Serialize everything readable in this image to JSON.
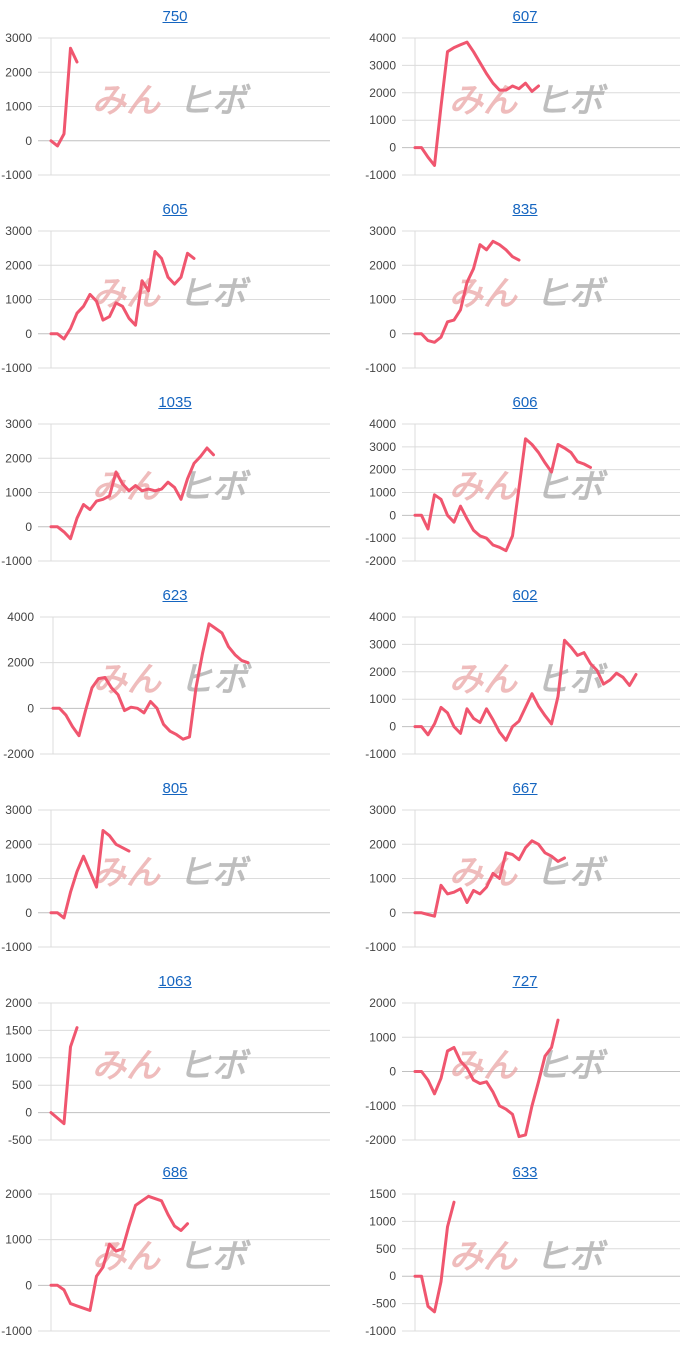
{
  "watermark": {
    "part1": "みん",
    "part2": "ヒボ"
  },
  "colors": {
    "line": "#f0566f",
    "grid": "#dcdcdc",
    "axis": "#c0c0c0",
    "title": "#1565c0"
  },
  "chart_data": [
    {
      "type": "line",
      "title": "750",
      "ylim": [
        -1000,
        3000
      ],
      "yticks": [
        -1000,
        0,
        1000,
        2000,
        3000
      ],
      "values": [
        0,
        -150,
        200,
        2700,
        2300
      ]
    },
    {
      "type": "line",
      "title": "607",
      "ylim": [
        -1000,
        4000
      ],
      "yticks": [
        -1000,
        0,
        1000,
        2000,
        3000,
        4000
      ],
      "values": [
        0,
        0,
        -350,
        -650,
        1500,
        3500,
        3650,
        3750,
        3850,
        3500,
        3100,
        2700,
        2350,
        2100,
        2100,
        2250,
        2150,
        2350,
        2050,
        2250
      ]
    },
    {
      "type": "line",
      "title": "605",
      "ylim": [
        -1000,
        3000
      ],
      "yticks": [
        -1000,
        0,
        1000,
        2000,
        3000
      ],
      "values": [
        0,
        0,
        -150,
        150,
        600,
        800,
        1150,
        950,
        400,
        500,
        900,
        800,
        450,
        250,
        1550,
        1250,
        2400,
        2200,
        1650,
        1450,
        1650,
        2350,
        2200
      ]
    },
    {
      "type": "line",
      "title": "835",
      "ylim": [
        -1000,
        3000
      ],
      "yticks": [
        -1000,
        0,
        1000,
        2000,
        3000
      ],
      "values": [
        0,
        0,
        -200,
        -250,
        -100,
        350,
        400,
        700,
        1500,
        1900,
        2600,
        2450,
        2700,
        2600,
        2450,
        2250,
        2150
      ]
    },
    {
      "type": "line",
      "title": "1035",
      "ylim": [
        -1000,
        3000
      ],
      "yticks": [
        -1000,
        0,
        1000,
        2000,
        3000
      ],
      "values": [
        0,
        0,
        -150,
        -350,
        250,
        650,
        500,
        750,
        800,
        900,
        1600,
        1250,
        1050,
        1200,
        1050,
        1100,
        1050,
        1100,
        1300,
        1150,
        800,
        1400,
        1850,
        2050,
        2300,
        2100
      ]
    },
    {
      "type": "line",
      "title": "606",
      "ylim": [
        -2000,
        4000
      ],
      "yticks": [
        -2000,
        -1000,
        0,
        1000,
        2000,
        3000,
        4000
      ],
      "values": [
        0,
        0,
        -600,
        900,
        700,
        0,
        -300,
        400,
        -150,
        -650,
        -900,
        -1000,
        -1300,
        -1400,
        -1550,
        -900,
        1200,
        3350,
        3100,
        2750,
        2300,
        1900,
        3100,
        2950,
        2750,
        2350,
        2250,
        2100
      ]
    },
    {
      "type": "line",
      "title": "623",
      "ylim": [
        -2000,
        4000
      ],
      "yticks": [
        -2000,
        0,
        2000,
        4000
      ],
      "values": [
        0,
        0,
        -300,
        -800,
        -1200,
        -100,
        900,
        1300,
        1350,
        900,
        600,
        -100,
        50,
        0,
        -200,
        300,
        0,
        -700,
        -1000,
        -1150,
        -1350,
        -1250,
        900,
        2400,
        3700,
        3500,
        3300,
        2700,
        2350,
        2100,
        2000
      ]
    },
    {
      "type": "line",
      "title": "602",
      "ylim": [
        -1000,
        4000
      ],
      "yticks": [
        -1000,
        0,
        1000,
        2000,
        3000,
        4000
      ],
      "values": [
        0,
        0,
        -300,
        100,
        700,
        500,
        0,
        -250,
        650,
        300,
        150,
        650,
        250,
        -200,
        -500,
        0,
        200,
        700,
        1200,
        750,
        400,
        100,
        1100,
        3150,
        2900,
        2600,
        2700,
        2300,
        2050,
        1550,
        1700,
        1950,
        1800,
        1500,
        1900
      ]
    },
    {
      "type": "line",
      "title": "805",
      "ylim": [
        -1000,
        3000
      ],
      "yticks": [
        -1000,
        0,
        1000,
        2000,
        3000
      ],
      "values": [
        0,
        0,
        -150,
        600,
        1200,
        1650,
        1200,
        750,
        2400,
        2250,
        2000,
        1900,
        1800
      ]
    },
    {
      "type": "line",
      "title": "667",
      "ylim": [
        -1000,
        3000
      ],
      "yticks": [
        -1000,
        0,
        1000,
        2000,
        3000
      ],
      "values": [
        0,
        0,
        -50,
        -100,
        800,
        550,
        600,
        700,
        300,
        650,
        550,
        750,
        1150,
        1000,
        1750,
        1700,
        1550,
        1900,
        2100,
        2000,
        1750,
        1650,
        1500,
        1600
      ]
    },
    {
      "type": "line",
      "title": "1063",
      "ylim": [
        -500,
        2000
      ],
      "yticks": [
        -500,
        0,
        500,
        1000,
        1500,
        2000
      ],
      "values": [
        0,
        -100,
        -200,
        1200,
        1550
      ]
    },
    {
      "type": "line",
      "title": "727",
      "ylim": [
        -2000,
        2000
      ],
      "yticks": [
        -2000,
        -1000,
        0,
        1000,
        2000
      ],
      "values": [
        0,
        0,
        -250,
        -650,
        -200,
        600,
        700,
        300,
        100,
        -250,
        -350,
        -300,
        -600,
        -1000,
        -1100,
        -1250,
        -1900,
        -1850,
        -1000,
        -300,
        450,
        700,
        1500
      ]
    },
    {
      "type": "line",
      "title": "686",
      "ylim": [
        -1000,
        2000
      ],
      "yticks": [
        -1000,
        0,
        1000,
        2000
      ],
      "values": [
        0,
        0,
        -100,
        -400,
        -450,
        -500,
        -550,
        200,
        400,
        900,
        750,
        800,
        1300,
        1750,
        1850,
        1950,
        1900,
        1850,
        1550,
        1300,
        1200,
        1350
      ]
    },
    {
      "type": "line",
      "title": "633",
      "ylim": [
        -1000,
        1500
      ],
      "yticks": [
        -1000,
        -500,
        0,
        500,
        1000,
        1500
      ],
      "values": [
        0,
        0,
        -550,
        -650,
        -100,
        900,
        1350
      ]
    }
  ]
}
